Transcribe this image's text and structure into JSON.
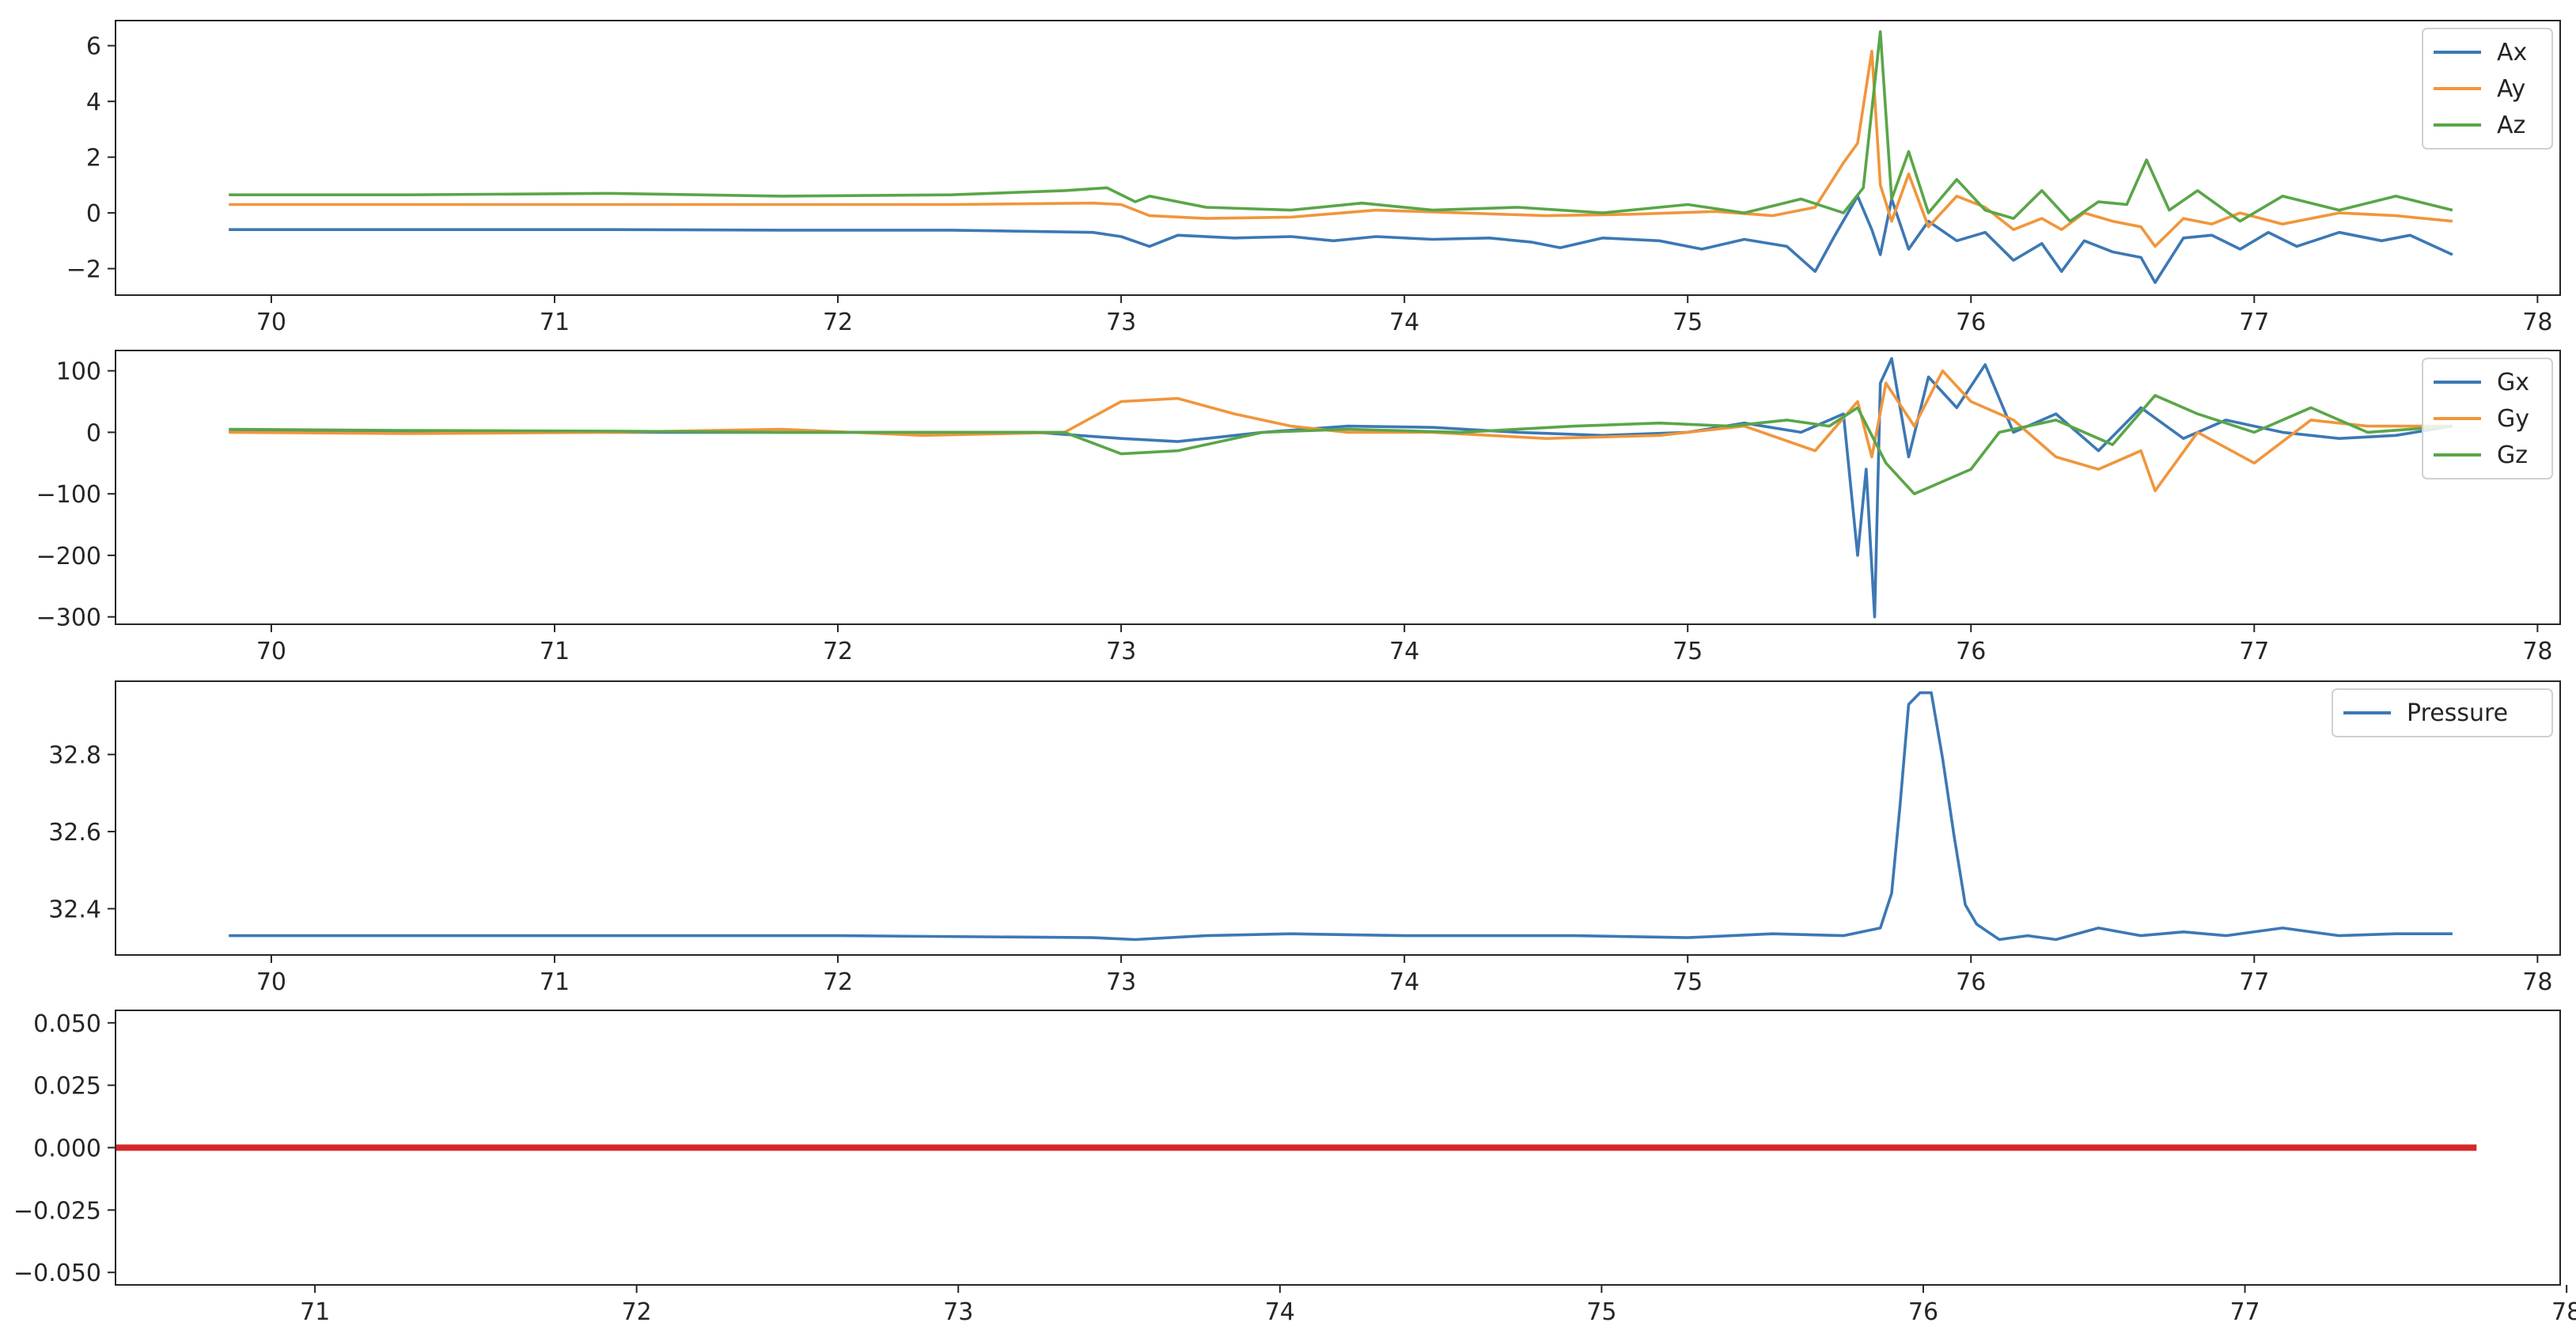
{
  "chart_data": [
    {
      "type": "line",
      "xlim": [
        69.45,
        78.08
      ],
      "ylim": [
        -2.95,
        6.9
      ],
      "xticks": [
        70,
        71,
        72,
        73,
        74,
        75,
        76,
        77,
        78
      ],
      "yticks": [
        -2,
        0,
        2,
        4,
        6
      ],
      "grid": false,
      "legend_position": "top-right",
      "series": [
        {
          "name": "Ax",
          "color": "#3c78b4",
          "x": [
            69.85,
            70.5,
            71.2,
            71.8,
            72.4,
            72.9,
            73.0,
            73.1,
            73.2,
            73.4,
            73.6,
            73.75,
            73.9,
            74.1,
            74.3,
            74.45,
            74.55,
            74.7,
            74.9,
            75.05,
            75.2,
            75.35,
            75.45,
            75.52,
            75.6,
            75.65,
            75.68,
            75.72,
            75.78,
            75.85,
            75.95,
            76.05,
            76.15,
            76.25,
            76.32,
            76.4,
            76.5,
            76.6,
            76.65,
            76.75,
            76.85,
            76.95,
            77.05,
            77.15,
            77.3,
            77.45,
            77.55,
            77.7
          ],
          "y": [
            -0.6,
            -0.6,
            -0.6,
            -0.62,
            -0.62,
            -0.7,
            -0.85,
            -1.2,
            -0.8,
            -0.9,
            -0.85,
            -1.0,
            -0.85,
            -0.95,
            -0.9,
            -1.05,
            -1.25,
            -0.9,
            -1.0,
            -1.3,
            -0.95,
            -1.2,
            -2.1,
            -0.8,
            0.6,
            -0.6,
            -1.5,
            0.5,
            -1.3,
            -0.3,
            -1.0,
            -0.7,
            -1.7,
            -1.1,
            -2.1,
            -1.0,
            -1.4,
            -1.6,
            -2.5,
            -0.9,
            -0.8,
            -1.3,
            -0.7,
            -1.2,
            -0.7,
            -1.0,
            -0.8,
            -1.5
          ]
        },
        {
          "name": "Ay",
          "color": "#f0963c",
          "x": [
            69.85,
            70.5,
            71.2,
            71.8,
            72.4,
            72.9,
            73.0,
            73.1,
            73.3,
            73.6,
            73.9,
            74.2,
            74.5,
            74.8,
            75.1,
            75.3,
            75.45,
            75.55,
            75.6,
            75.65,
            75.68,
            75.72,
            75.78,
            75.85,
            75.95,
            76.05,
            76.15,
            76.25,
            76.32,
            76.4,
            76.5,
            76.6,
            76.65,
            76.75,
            76.85,
            76.95,
            77.1,
            77.3,
            77.5,
            77.7
          ],
          "y": [
            0.3,
            0.3,
            0.3,
            0.3,
            0.3,
            0.35,
            0.3,
            -0.1,
            -0.2,
            -0.15,
            0.1,
            0.0,
            -0.1,
            -0.05,
            0.05,
            -0.1,
            0.2,
            1.8,
            2.5,
            5.8,
            1.0,
            -0.3,
            1.4,
            -0.5,
            0.6,
            0.2,
            -0.6,
            -0.2,
            -0.6,
            0.0,
            -0.3,
            -0.5,
            -1.2,
            -0.2,
            -0.4,
            0.0,
            -0.4,
            0.0,
            -0.1,
            -0.3
          ]
        },
        {
          "name": "Az",
          "color": "#59a648",
          "x": [
            69.85,
            70.5,
            71.2,
            71.8,
            72.4,
            72.8,
            72.95,
            73.05,
            73.1,
            73.3,
            73.6,
            73.85,
            74.1,
            74.4,
            74.7,
            75.0,
            75.2,
            75.4,
            75.55,
            75.62,
            75.68,
            75.72,
            75.78,
            75.85,
            75.95,
            76.05,
            76.15,
            76.25,
            76.35,
            76.45,
            76.55,
            76.62,
            76.7,
            76.8,
            76.95,
            77.1,
            77.3,
            77.5,
            77.7
          ],
          "y": [
            0.65,
            0.65,
            0.7,
            0.6,
            0.65,
            0.8,
            0.9,
            0.4,
            0.6,
            0.2,
            0.1,
            0.35,
            0.1,
            0.2,
            0.0,
            0.3,
            0.0,
            0.5,
            0.0,
            0.9,
            6.5,
            0.5,
            2.2,
            0.0,
            1.2,
            0.1,
            -0.2,
            0.8,
            -0.3,
            0.4,
            0.3,
            1.9,
            0.1,
            0.8,
            -0.3,
            0.6,
            0.1,
            0.6,
            0.1
          ]
        }
      ]
    },
    {
      "type": "line",
      "xlim": [
        69.45,
        78.08
      ],
      "ylim": [
        -312,
        133
      ],
      "xticks": [
        70,
        71,
        72,
        73,
        74,
        75,
        76,
        77,
        78
      ],
      "yticks": [
        -300,
        -200,
        -100,
        0,
        100
      ],
      "grid": false,
      "legend_position": "top-right",
      "series": [
        {
          "name": "Gx",
          "color": "#3c78b4",
          "x": [
            69.85,
            70.5,
            71.2,
            72.0,
            72.7,
            73.0,
            73.2,
            73.5,
            73.8,
            74.1,
            74.4,
            74.7,
            75.0,
            75.2,
            75.4,
            75.55,
            75.6,
            75.63,
            75.66,
            75.68,
            75.72,
            75.78,
            75.85,
            75.95,
            76.05,
            76.15,
            76.3,
            76.45,
            76.6,
            76.75,
            76.9,
            77.1,
            77.3,
            77.5,
            77.7
          ],
          "y": [
            2,
            2,
            0,
            0,
            0,
            -10,
            -15,
            0,
            10,
            8,
            0,
            -5,
            0,
            15,
            0,
            30,
            -200,
            -60,
            -300,
            80,
            120,
            -40,
            90,
            40,
            110,
            0,
            30,
            -30,
            40,
            -10,
            20,
            0,
            -10,
            -5,
            10
          ]
        },
        {
          "name": "Gy",
          "color": "#f0963c",
          "x": [
            69.85,
            70.5,
            71.2,
            71.8,
            72.3,
            72.8,
            73.0,
            73.2,
            73.4,
            73.6,
            73.8,
            74.1,
            74.5,
            74.9,
            75.2,
            75.45,
            75.6,
            75.65,
            75.7,
            75.8,
            75.9,
            76.0,
            76.15,
            76.3,
            76.45,
            76.6,
            76.65,
            76.8,
            77.0,
            77.2,
            77.4,
            77.7
          ],
          "y": [
            0,
            -2,
            0,
            5,
            -5,
            0,
            50,
            55,
            30,
            10,
            0,
            0,
            -10,
            -5,
            10,
            -30,
            50,
            -40,
            80,
            10,
            100,
            50,
            20,
            -40,
            -60,
            -30,
            -95,
            0,
            -50,
            20,
            10,
            10
          ]
        },
        {
          "name": "Gz",
          "color": "#59a648",
          "x": [
            69.85,
            70.5,
            71.2,
            71.8,
            72.4,
            72.8,
            73.0,
            73.2,
            73.5,
            73.8,
            74.2,
            74.6,
            74.9,
            75.15,
            75.35,
            75.5,
            75.6,
            75.7,
            75.8,
            75.9,
            76.0,
            76.1,
            76.3,
            76.5,
            76.65,
            76.8,
            77.0,
            77.2,
            77.4,
            77.7
          ],
          "y": [
            5,
            3,
            2,
            0,
            0,
            0,
            -35,
            -30,
            0,
            5,
            0,
            10,
            15,
            10,
            20,
            10,
            40,
            -50,
            -100,
            -80,
            -60,
            0,
            20,
            -20,
            60,
            30,
            0,
            40,
            0,
            10
          ]
        }
      ]
    },
    {
      "type": "line",
      "xlim": [
        69.45,
        78.08
      ],
      "ylim": [
        32.28,
        32.99
      ],
      "xticks": [
        70,
        71,
        72,
        73,
        74,
        75,
        76,
        77,
        78
      ],
      "yticks": [
        32.4,
        32.6,
        32.8
      ],
      "grid": false,
      "legend_position": "top-right",
      "series": [
        {
          "name": "Pressure",
          "color": "#3c78b4",
          "x": [
            69.85,
            71.0,
            72.0,
            72.9,
            73.05,
            73.3,
            73.6,
            74.0,
            74.6,
            75.0,
            75.3,
            75.55,
            75.68,
            75.72,
            75.75,
            75.78,
            75.82,
            75.86,
            75.9,
            75.94,
            75.98,
            76.02,
            76.06,
            76.1,
            76.2,
            76.3,
            76.45,
            76.6,
            76.75,
            76.9,
            77.1,
            77.3,
            77.5,
            77.7
          ],
          "y": [
            32.33,
            32.33,
            32.33,
            32.325,
            32.32,
            32.33,
            32.335,
            32.33,
            32.33,
            32.325,
            32.335,
            32.33,
            32.35,
            32.44,
            32.67,
            32.93,
            32.96,
            32.96,
            32.79,
            32.59,
            32.41,
            32.36,
            32.34,
            32.32,
            32.33,
            32.32,
            32.35,
            32.33,
            32.34,
            32.33,
            32.35,
            32.33,
            32.335,
            32.335
          ]
        }
      ]
    },
    {
      "type": "line",
      "xlim": [
        70.38,
        77.98
      ],
      "ylim": [
        -0.055,
        0.055
      ],
      "xticks": [
        71,
        72,
        73,
        74,
        75,
        76,
        77,
        78
      ],
      "yticks": [
        -0.05,
        -0.025,
        0.0,
        0.025,
        0.05
      ],
      "ytick_labels": [
        "−0.050",
        "−0.025",
        "0.000",
        "0.025",
        "0.050"
      ],
      "grid": false,
      "series": [
        {
          "color": "#d62728",
          "x": [
            70.38,
            77.72
          ],
          "y": [
            0,
            0
          ]
        }
      ]
    }
  ]
}
